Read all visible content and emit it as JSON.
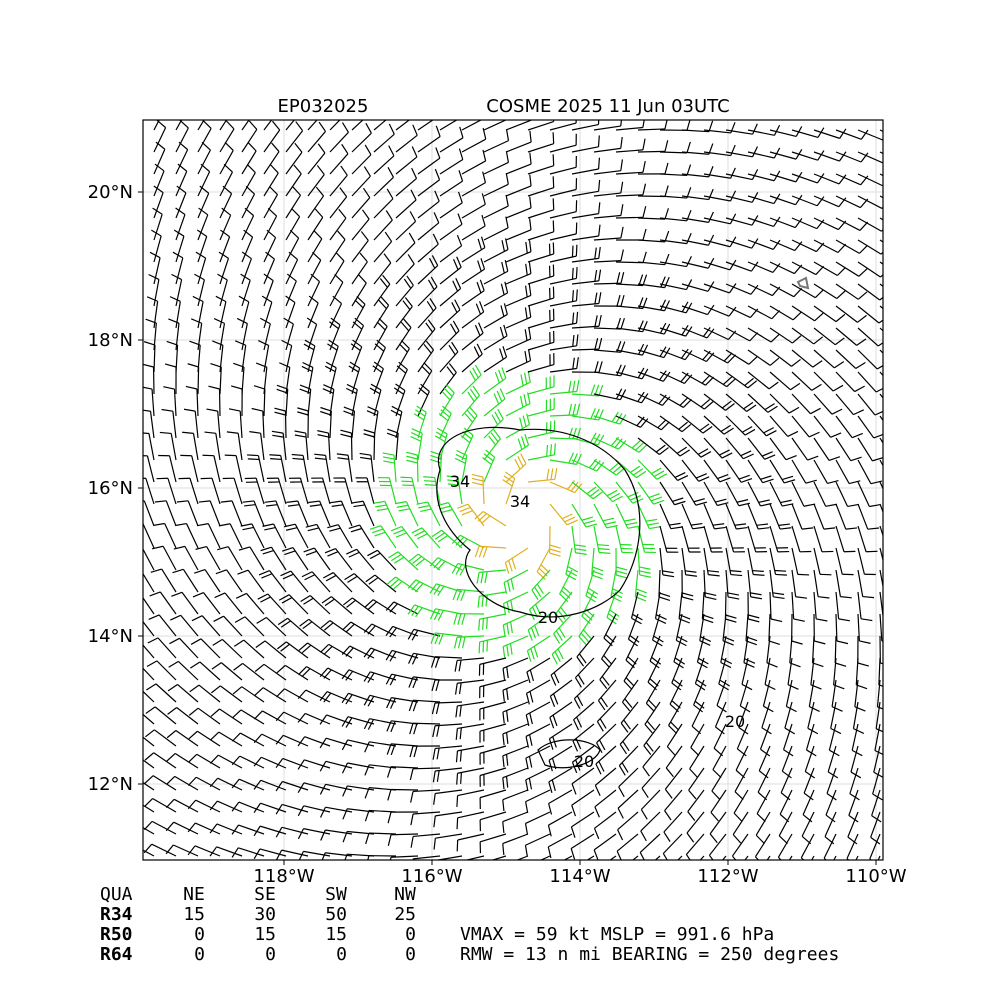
{
  "header": {
    "storm_id": "EP032025",
    "title": "COSME 2025 11 Jun 03UTC"
  },
  "map": {
    "lon_labels": [
      "118°W",
      "116°W",
      "114°W",
      "112°W",
      "110°W"
    ],
    "lat_labels": [
      "20°N",
      "18°N",
      "16°N",
      "14°N",
      "12°N"
    ],
    "contour_labels": [
      "34",
      "34",
      "20",
      "20",
      "20"
    ]
  },
  "table": {
    "header": [
      "QUA",
      "NE",
      "SE",
      "SW",
      "NW"
    ],
    "rows": [
      [
        "R34",
        "15",
        "30",
        "50",
        "25"
      ],
      [
        "R50",
        "0",
        "15",
        "15",
        "0"
      ],
      [
        "R64",
        "0",
        "0",
        "0",
        "0"
      ]
    ]
  },
  "stats": [
    "VMAX =  59 kt MSLP = 991.6 hPa",
    "RMW =  13 n mi BEARING = 250 degrees"
  ]
}
